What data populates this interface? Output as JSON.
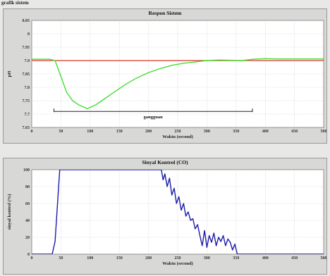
{
  "window": {
    "title": "grafik sistem"
  },
  "chart_data": [
    {
      "type": "line",
      "title": "Respon Sistem",
      "xlabel": "Waktu (second)",
      "ylabel": "pH",
      "xlim": [
        0,
        500
      ],
      "ylim": [
        7.65,
        8.05
      ],
      "xticks": [
        "0",
        "50",
        "100",
        "150",
        "200",
        "250",
        "300",
        "350",
        "400",
        "450",
        "500"
      ],
      "yticks": [
        "7.65",
        "7.7",
        "7.75",
        "7.8",
        "7.85",
        "7.9",
        "7.95",
        "8",
        "8.05"
      ],
      "grid": true,
      "series": [
        {
          "color": "#d9342b",
          "x": [
            0,
            500
          ],
          "y": [
            7.9,
            7.9
          ]
        },
        {
          "color": "#44dd33",
          "x": [
            0,
            30,
            40,
            50,
            60,
            70,
            80,
            90,
            95,
            100,
            110,
            120,
            140,
            160,
            180,
            200,
            220,
            240,
            260,
            280,
            300,
            320,
            340,
            360,
            380,
            400,
            420,
            450,
            480,
            500
          ],
          "y": [
            7.905,
            7.905,
            7.9,
            7.84,
            7.78,
            7.75,
            7.735,
            7.725,
            7.72,
            7.725,
            7.735,
            7.75,
            7.78,
            7.81,
            7.835,
            7.855,
            7.87,
            7.882,
            7.89,
            7.895,
            7.9,
            7.902,
            7.901,
            7.9,
            7.905,
            7.907,
            7.906,
            7.906,
            7.906,
            7.906
          ]
        }
      ],
      "annotation": {
        "text": "gangguan",
        "x_from": 38,
        "x_to": 378,
        "y": 7.71
      }
    },
    {
      "type": "line",
      "title": "Sinyal Kontrol (CO)",
      "xlabel": "Waktu (second)",
      "ylabel": "sinyal kontrol (%)",
      "xlim": [
        0,
        500
      ],
      "ylim": [
        0,
        100
      ],
      "xticks": [
        "0",
        "50",
        "100",
        "150",
        "200",
        "250",
        "300",
        "350",
        "400",
        "450",
        "500"
      ],
      "yticks": [
        "0",
        "20",
        "40",
        "60",
        "80",
        "100"
      ],
      "grid": true,
      "series": [
        {
          "color": "#1c1ca8",
          "x": [
            0,
            35,
            40,
            48,
            100,
            150,
            200,
            222,
            225,
            228,
            232,
            236,
            240,
            244,
            248,
            252,
            256,
            260,
            264,
            268,
            272,
            276,
            280,
            284,
            288,
            292,
            296,
            300,
            304,
            308,
            312,
            316,
            320,
            324,
            328,
            332,
            336,
            340,
            344,
            348,
            352,
            356,
            360,
            400,
            450,
            500
          ],
          "y": [
            0,
            0,
            15,
            100,
            100,
            100,
            100,
            100,
            88,
            95,
            80,
            90,
            70,
            78,
            60,
            68,
            52,
            60,
            45,
            50,
            40,
            42,
            30,
            35,
            22,
            10,
            28,
            8,
            22,
            14,
            25,
            10,
            20,
            15,
            22,
            10,
            18,
            14,
            5,
            12,
            0,
            0,
            0,
            0,
            0,
            0
          ]
        }
      ]
    }
  ]
}
